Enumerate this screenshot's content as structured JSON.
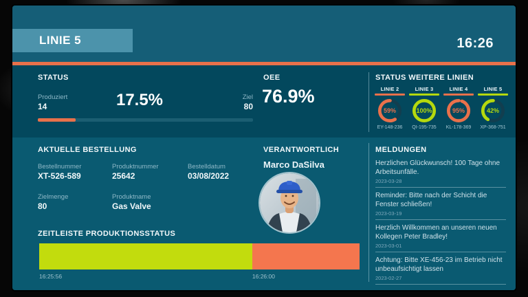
{
  "header": {
    "title": "LINIE 5",
    "clock": "16:26"
  },
  "status": {
    "title": "STATUS",
    "produced_label": "Produziert",
    "produced_value": "14",
    "percent_display": "17.5%",
    "progress_pct": 17.5,
    "target_label": "Ziel",
    "target_value": "80"
  },
  "oee": {
    "title": "OEE",
    "value": "76.9%"
  },
  "other_lines": {
    "title": "STATUS WEITERE LINIEN",
    "lines": [
      {
        "label": "LINIE 2",
        "percent": 59,
        "display": "59%",
        "color": "#E8714B",
        "code": "EY-148-236"
      },
      {
        "label": "LINIE 3",
        "percent": 100,
        "display": "100%",
        "color": "#B5D90E",
        "code": "QI-195-735"
      },
      {
        "label": "LINIE 4",
        "percent": 95,
        "display": "95%",
        "color": "#E8714B",
        "code": "KL-178-369"
      },
      {
        "label": "LINIE 5",
        "percent": 42,
        "display": "42%",
        "color": "#B5D90E",
        "code": "XP-368-751"
      }
    ]
  },
  "order": {
    "title": "AKTUELLE BESTELLUNG",
    "order_number_label": "Bestellnummer",
    "order_number": "XT-526-589",
    "product_number_label": "Produktnummer",
    "product_number": "25642",
    "order_date_label": "Bestelldatum",
    "order_date": "03/08/2022",
    "target_qty_label": "Zielmenge",
    "target_qty": "80",
    "product_name_label": "Produktname",
    "product_name": "Gas Valve"
  },
  "responsible": {
    "title": "VERANTWORTLICH",
    "name": "Marco DaSilva"
  },
  "messages": {
    "title": "MELDUNGEN",
    "items": [
      {
        "text": "Herzlichen Glückwunsch! 100 Tage ohne Arbeitsunfälle.",
        "date": "2023-03-28"
      },
      {
        "text": "Reminder: Bitte nach der Schicht die Fenster schließen!",
        "date": "2023-03-19"
      },
      {
        "text": "Herzlich Willkommen an unseren neuen Kollegen Peter Bradley!",
        "date": "2023-03-01"
      },
      {
        "text": "Achtung: Bitte XE-456-23 im Betrieb nicht unbeaufsichtigt lassen",
        "date": "2023-02-27"
      }
    ]
  },
  "timeline": {
    "title": "ZEITLEISTE PRODUKTIONSSTATUS",
    "segments": [
      {
        "color": "#C2DC0D",
        "pct": 66.5
      },
      {
        "color": "#F4764E",
        "pct": 33.5
      }
    ],
    "start_label": "16:25:56",
    "marker_label": "16:26:00",
    "marker_pct": 66.5
  },
  "colors": {
    "accent_orange": "#E8714B",
    "accent_green": "#B5D90E",
    "header_bg": "#155E77",
    "toprow_bg": "#03485D",
    "bottom_bg": "#0A5A71",
    "title_box_bg": "#4C93AB"
  }
}
